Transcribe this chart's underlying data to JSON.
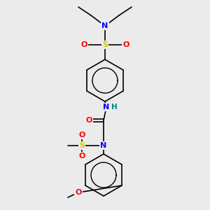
{
  "bg_color": "#ebebeb",
  "atom_colors": {
    "C": "#000000",
    "N": "#0000ff",
    "O": "#ff0000",
    "S": "#cccc00",
    "H": "#008080"
  },
  "bond_color": "#000000",
  "bond_lw": 1.2,
  "font_size": 7.5,
  "fig_size": [
    3.0,
    3.0
  ],
  "dpi": 100
}
